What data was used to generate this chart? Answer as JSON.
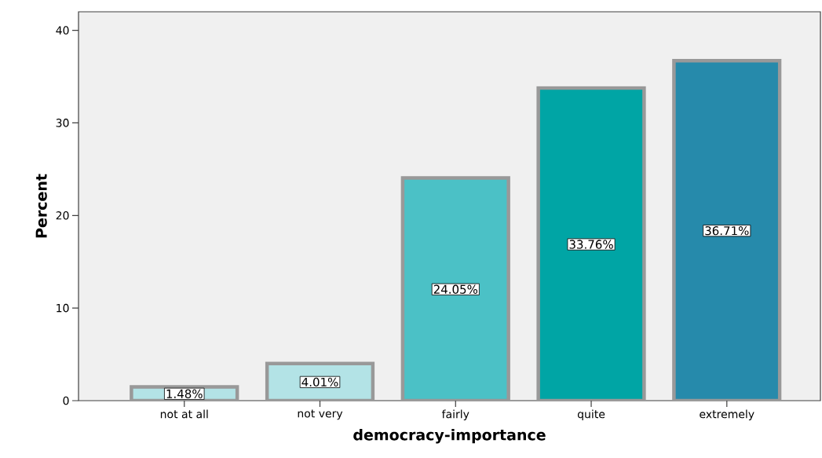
{
  "chart_data": {
    "type": "bar",
    "xlabel": "democracy-importance",
    "ylabel": "Percent",
    "categories": [
      "not at all",
      "not very",
      "fairly",
      "quite",
      "extremely"
    ],
    "values": [
      1.48,
      4.01,
      24.05,
      33.76,
      36.71
    ],
    "colors": [
      "#b3e3e6",
      "#b3e3e6",
      "#4bc1c6",
      "#00a5a5",
      "#268aab"
    ],
    "value_labels": [
      "1.48%",
      "4.01%",
      "24.05%",
      "33.76%",
      "36.71%"
    ],
    "ylim": [
      0,
      42
    ],
    "yticks": [
      0,
      10,
      20,
      30,
      40
    ],
    "grid": false
  }
}
